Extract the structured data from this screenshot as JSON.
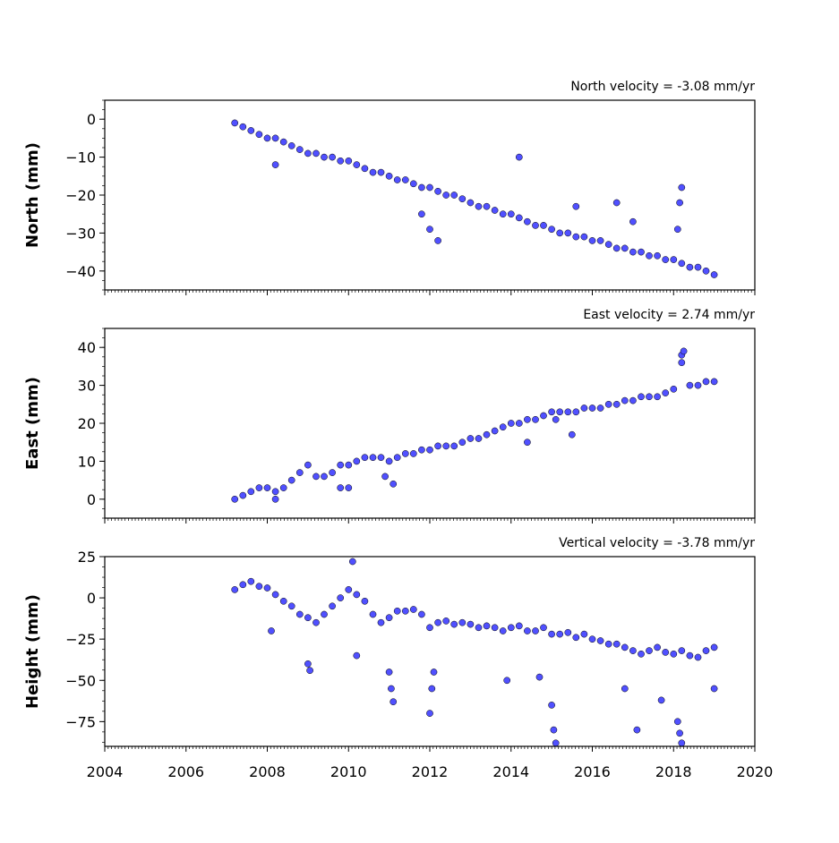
{
  "chart_data": [
    {
      "type": "scatter",
      "title": "North velocity = -3.08 mm/yr",
      "ylabel": "North (mm)",
      "xlim": [
        2004,
        2020
      ],
      "ylim": [
        -45,
        5
      ],
      "yticks": [
        0,
        -10,
        -20,
        -30,
        -40
      ],
      "velocity": -3.08,
      "series": [
        {
          "x": [
            2007.2,
            2007.4,
            2007.6,
            2007.8,
            2008.0,
            2008.2,
            2008.4,
            2008.6,
            2008.8,
            2009.0,
            2009.2,
            2009.4,
            2009.6,
            2009.8,
            2010.0,
            2010.2,
            2010.4,
            2010.6,
            2010.8,
            2011.0,
            2011.2,
            2011.4,
            2011.6,
            2011.8,
            2012.0,
            2012.2,
            2012.4,
            2012.6,
            2012.8,
            2013.0,
            2013.2,
            2013.4,
            2013.6,
            2013.8,
            2014.0,
            2014.2,
            2014.4,
            2014.6,
            2014.8,
            2015.0,
            2015.2,
            2015.4,
            2015.6,
            2015.8,
            2016.0,
            2016.2,
            2016.4,
            2016.6,
            2016.8,
            2017.0,
            2017.2,
            2017.4,
            2017.6,
            2017.8,
            2018.0,
            2018.2,
            2018.4,
            2018.6,
            2018.8,
            2019.0
          ],
          "y": [
            -1,
            -2,
            -3,
            -4,
            -5,
            -5,
            -6,
            -7,
            -8,
            -9,
            -9,
            -10,
            -10,
            -11,
            -11,
            -12,
            -13,
            -14,
            -14,
            -15,
            -16,
            -16,
            -17,
            -18,
            -18,
            -19,
            -20,
            -20,
            -21,
            -22,
            -23,
            -23,
            -24,
            -25,
            -25,
            -26,
            -27,
            -28,
            -28,
            -29,
            -30,
            -30,
            -31,
            -31,
            -32,
            -32,
            -33,
            -34,
            -34,
            -35,
            -35,
            -36,
            -36,
            -37,
            -37,
            -38,
            -39,
            -39,
            -40,
            -41
          ]
        },
        {
          "x": [
            2008.2,
            2011.8,
            2012.0,
            2012.2,
            2014.2,
            2015.6,
            2016.6,
            2017.0,
            2018.1,
            2018.15,
            2018.2
          ],
          "y": [
            -12,
            -25,
            -29,
            -32,
            -10,
            -23,
            -22,
            -27,
            -29,
            -22,
            -18
          ]
        }
      ]
    },
    {
      "type": "scatter",
      "title": "East velocity = 2.74 mm/yr",
      "ylabel": "East (mm)",
      "xlim": [
        2004,
        2020
      ],
      "ylim": [
        -5,
        45
      ],
      "yticks": [
        40,
        30,
        20,
        10,
        0
      ],
      "velocity": 2.74,
      "series": [
        {
          "x": [
            2007.2,
            2007.4,
            2007.6,
            2007.8,
            2008.0,
            2008.2,
            2008.4,
            2008.6,
            2008.8,
            2009.0,
            2009.2,
            2009.4,
            2009.6,
            2009.8,
            2010.0,
            2010.2,
            2010.4,
            2010.6,
            2010.8,
            2011.0,
            2011.2,
            2011.4,
            2011.6,
            2011.8,
            2012.0,
            2012.2,
            2012.4,
            2012.6,
            2012.8,
            2013.0,
            2013.2,
            2013.4,
            2013.6,
            2013.8,
            2014.0,
            2014.2,
            2014.4,
            2014.6,
            2014.8,
            2015.0,
            2015.2,
            2015.4,
            2015.6,
            2015.8,
            2016.0,
            2016.2,
            2016.4,
            2016.6,
            2016.8,
            2017.0,
            2017.2,
            2017.4,
            2017.6,
            2017.8,
            2018.0,
            2018.2,
            2018.4,
            2018.6,
            2018.8,
            2019.0
          ],
          "y": [
            0,
            1,
            2,
            3,
            3,
            2,
            3,
            5,
            7,
            9,
            6,
            6,
            7,
            9,
            9,
            10,
            11,
            11,
            11,
            10,
            11,
            12,
            12,
            13,
            13,
            14,
            14,
            14,
            15,
            16,
            16,
            17,
            18,
            19,
            20,
            20,
            21,
            21,
            22,
            23,
            23,
            23,
            23,
            24,
            24,
            24,
            25,
            25,
            26,
            26,
            27,
            27,
            27,
            28,
            29,
            36,
            30,
            30,
            31,
            31
          ]
        },
        {
          "x": [
            2008.2,
            2009.8,
            2010.0,
            2010.9,
            2011.1,
            2014.4,
            2015.1,
            2015.5,
            2018.2,
            2018.25
          ],
          "y": [
            0,
            3,
            3,
            6,
            4,
            15,
            21,
            17,
            38,
            39
          ]
        }
      ]
    },
    {
      "type": "scatter",
      "title": "Vertical velocity = -3.78 mm/yr",
      "ylabel": "Height (mm)",
      "xlim": [
        2004,
        2020
      ],
      "ylim": [
        -90,
        25
      ],
      "yticks": [
        25,
        0,
        -25,
        -50,
        -75
      ],
      "velocity": -3.78,
      "series": [
        {
          "x": [
            2007.2,
            2007.4,
            2007.6,
            2007.8,
            2008.0,
            2008.2,
            2008.4,
            2008.6,
            2008.8,
            2009.0,
            2009.2,
            2009.4,
            2009.6,
            2009.8,
            2010.0,
            2010.2,
            2010.4,
            2010.6,
            2010.8,
            2011.0,
            2011.2,
            2011.4,
            2011.6,
            2011.8,
            2012.0,
            2012.2,
            2012.4,
            2012.6,
            2012.8,
            2013.0,
            2013.2,
            2013.4,
            2013.6,
            2013.8,
            2014.0,
            2014.2,
            2014.4,
            2014.6,
            2014.8,
            2015.0,
            2015.2,
            2015.4,
            2015.6,
            2015.8,
            2016.0,
            2016.2,
            2016.4,
            2016.6,
            2016.8,
            2017.0,
            2017.2,
            2017.4,
            2017.6,
            2017.8,
            2018.0,
            2018.2,
            2018.4,
            2018.6,
            2018.8,
            2019.0
          ],
          "y": [
            5,
            8,
            10,
            7,
            6,
            2,
            -2,
            -5,
            -10,
            -12,
            -15,
            -10,
            -5,
            0,
            5,
            2,
            -2,
            -10,
            -15,
            -12,
            -8,
            -8,
            -7,
            -10,
            -18,
            -15,
            -14,
            -16,
            -15,
            -16,
            -18,
            -17,
            -18,
            -20,
            -18,
            -17,
            -20,
            -20,
            -18,
            -22,
            -22,
            -21,
            -24,
            -22,
            -25,
            -26,
            -28,
            -28,
            -30,
            -32,
            -34,
            -32,
            -30,
            -33,
            -34,
            -32,
            -35,
            -36,
            -32,
            -30
          ]
        },
        {
          "x": [
            2008.1,
            2009.0,
            2009.05,
            2010.1,
            2010.2,
            2011.0,
            2011.05,
            2011.1,
            2012.0,
            2012.05,
            2012.1,
            2013.9,
            2014.7,
            2015.0,
            2015.05,
            2015.1,
            2016.8,
            2017.1,
            2017.7,
            2018.1,
            2018.15,
            2018.2,
            2019.0
          ],
          "y": [
            -20,
            -40,
            -44,
            22,
            -35,
            -45,
            -55,
            -63,
            -70,
            -55,
            -45,
            -50,
            -48,
            -65,
            -80,
            -88,
            -55,
            -80,
            -62,
            -75,
            -82,
            -88,
            -55
          ]
        }
      ]
    }
  ],
  "x_ticks": [
    "2004",
    "2006",
    "2008",
    "2010",
    "2012",
    "2014",
    "2016",
    "2018",
    "2020"
  ],
  "colors": {
    "marker_fill": "#5050ff",
    "marker_edge": "#000000",
    "axes": "#000000"
  }
}
